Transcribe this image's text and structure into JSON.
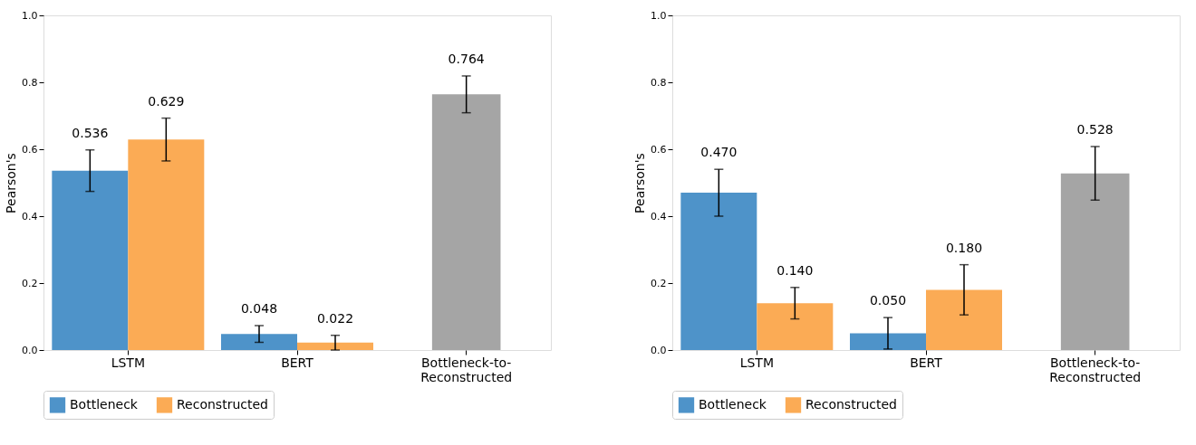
{
  "chart_data": [
    {
      "type": "bar",
      "ylabel": "Pearson's",
      "categories": [
        "LSTM",
        "BERT",
        "Bottleneck-to-\nReconstructed"
      ],
      "ylim": [
        0,
        1.0
      ],
      "yticks": [
        {
          "value": 0,
          "label": "0.0"
        },
        {
          "value": 0.2,
          "label": "0.2"
        },
        {
          "value": 0.4,
          "label": "0.4"
        },
        {
          "value": 0.6,
          "label": "0.6"
        },
        {
          "value": 0.8,
          "label": "0.8"
        },
        {
          "value": 1.0,
          "label": "1.0"
        }
      ],
      "grid": false,
      "legend": "bottom",
      "series": [
        {
          "name": "Bottleneck",
          "color": "#4e93c9",
          "values": [
            0.536,
            0.048,
            null
          ],
          "errors": [
            0.062,
            0.025,
            null
          ],
          "value_labels": [
            "0.536",
            "0.048",
            null
          ]
        },
        {
          "name": "Reconstructed",
          "color": "#fbab55",
          "values": [
            0.629,
            0.022,
            null
          ],
          "errors": [
            0.064,
            0.022,
            null
          ],
          "value_labels": [
            "0.629",
            "0.022",
            null
          ]
        },
        {
          "color": "#a5a5a5",
          "values": [
            null,
            null,
            0.764
          ],
          "errors": [
            null,
            null,
            0.055
          ],
          "value_labels": [
            null,
            null,
            "0.764"
          ]
        }
      ]
    },
    {
      "type": "bar",
      "ylabel": "Pearson's",
      "categories": [
        "LSTM",
        "BERT",
        "Bottleneck-to-\nReconstructed"
      ],
      "ylim": [
        0,
        1.0
      ],
      "yticks": [
        {
          "value": 0,
          "label": "0.0"
        },
        {
          "value": 0.2,
          "label": "0.2"
        },
        {
          "value": 0.4,
          "label": "0.4"
        },
        {
          "value": 0.6,
          "label": "0.6"
        },
        {
          "value": 0.8,
          "label": "0.8"
        },
        {
          "value": 1.0,
          "label": "1.0"
        }
      ],
      "grid": false,
      "legend": "bottom",
      "series": [
        {
          "name": "Bottleneck",
          "color": "#4e93c9",
          "values": [
            0.47,
            0.05,
            null
          ],
          "errors": [
            0.07,
            0.047,
            null
          ],
          "value_labels": [
            "0.470",
            "0.050",
            null
          ]
        },
        {
          "name": "Reconstructed",
          "color": "#fbab55",
          "values": [
            0.14,
            0.18,
            null
          ],
          "errors": [
            0.047,
            0.075,
            null
          ],
          "value_labels": [
            "0.140",
            "0.180",
            null
          ]
        },
        {
          "color": "#a5a5a5",
          "values": [
            null,
            null,
            0.528
          ],
          "errors": [
            null,
            null,
            0.08
          ],
          "value_labels": [
            null,
            null,
            "0.528"
          ]
        }
      ]
    }
  ]
}
